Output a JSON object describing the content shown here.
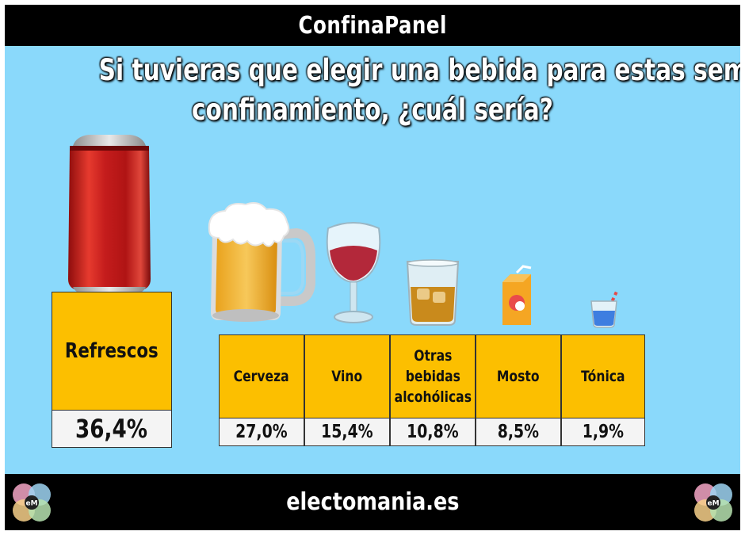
{
  "header": {
    "title": "ConfinaPanel"
  },
  "question": {
    "line1": "Si tuvieras que elegir una bebida para estas semanas de",
    "line2": "confinamiento, ¿cuál sería?"
  },
  "chart_data": {
    "type": "table",
    "title": "Si tuvieras que elegir una bebida para estas semanas de confinamiento, ¿cuál sería?",
    "categories": [
      "Refrescos",
      "Cerveza",
      "Vino",
      "Otras bebidas alcohólicas",
      "Mosto",
      "Tónica"
    ],
    "values": [
      36.4,
      27.0,
      15.4,
      10.8,
      8.5,
      1.9
    ],
    "unit": "%",
    "value_labels": [
      "36,4%",
      "27,0%",
      "15,4%",
      "10,8%",
      "8,5%",
      "1,9%"
    ],
    "label_lines": [
      [
        "Refrescos"
      ],
      [
        "Cerveza"
      ],
      [
        "Vino"
      ],
      [
        "Otras",
        "bebidas",
        "alcohólicas"
      ],
      [
        "Mosto"
      ],
      [
        "Tónica"
      ]
    ],
    "icons": [
      "soda-can-icon",
      "beer-mug-icon",
      "wine-glass-icon",
      "whisky-glass-icon",
      "juice-box-icon",
      "tonic-glass-icon"
    ]
  },
  "colors": {
    "background": "#8ad9fb",
    "label_cell": "#fcbf00",
    "value_cell": "#f4f4f4",
    "bars": "#000000"
  },
  "footer": {
    "site": "electomania.es",
    "logo_text": "eM"
  }
}
